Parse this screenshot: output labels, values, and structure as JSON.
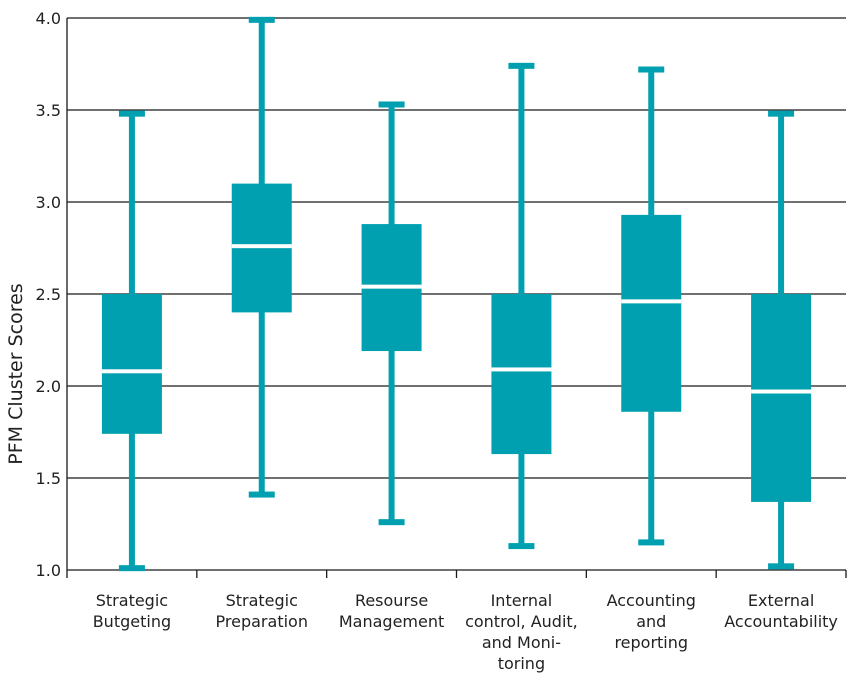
{
  "chart_data": {
    "type": "boxplot",
    "title": "",
    "xlabel": "",
    "ylabel": "PFM Cluster Scores",
    "ylim": [
      1.0,
      4.0
    ],
    "yticks": [
      "1.0",
      "1.5",
      "2.0",
      "2.5",
      "3.0",
      "3.5",
      "4.0"
    ],
    "grid": "horizontal",
    "colors": {
      "box": "#00A0B0",
      "median": "#ffffff",
      "grid": "#1a1a1a",
      "text": "#222222"
    },
    "categories": [
      {
        "label_lines": [
          "Strategic",
          "Butgeting"
        ],
        "min": 1.01,
        "q1": 1.74,
        "median": 2.08,
        "q3": 2.5,
        "max": 3.48
      },
      {
        "label_lines": [
          "Strategic",
          "Preparation"
        ],
        "min": 1.41,
        "q1": 2.4,
        "median": 2.76,
        "q3": 3.1,
        "max": 3.99
      },
      {
        "label_lines": [
          "Resourse",
          "Management"
        ],
        "min": 1.26,
        "q1": 2.19,
        "median": 2.54,
        "q3": 2.88,
        "max": 3.53
      },
      {
        "label_lines": [
          "Internal",
          "control, Audit,",
          "and Moni-",
          "toring"
        ],
        "min": 1.13,
        "q1": 1.63,
        "median": 2.09,
        "q3": 2.5,
        "max": 3.74
      },
      {
        "label_lines": [
          "Accounting",
          "and",
          "reporting"
        ],
        "min": 1.15,
        "q1": 1.86,
        "median": 2.46,
        "q3": 2.93,
        "max": 3.72
      },
      {
        "label_lines": [
          "External",
          "Accountability"
        ],
        "min": 1.02,
        "q1": 1.37,
        "median": 1.97,
        "q3": 2.5,
        "max": 3.48
      }
    ]
  }
}
